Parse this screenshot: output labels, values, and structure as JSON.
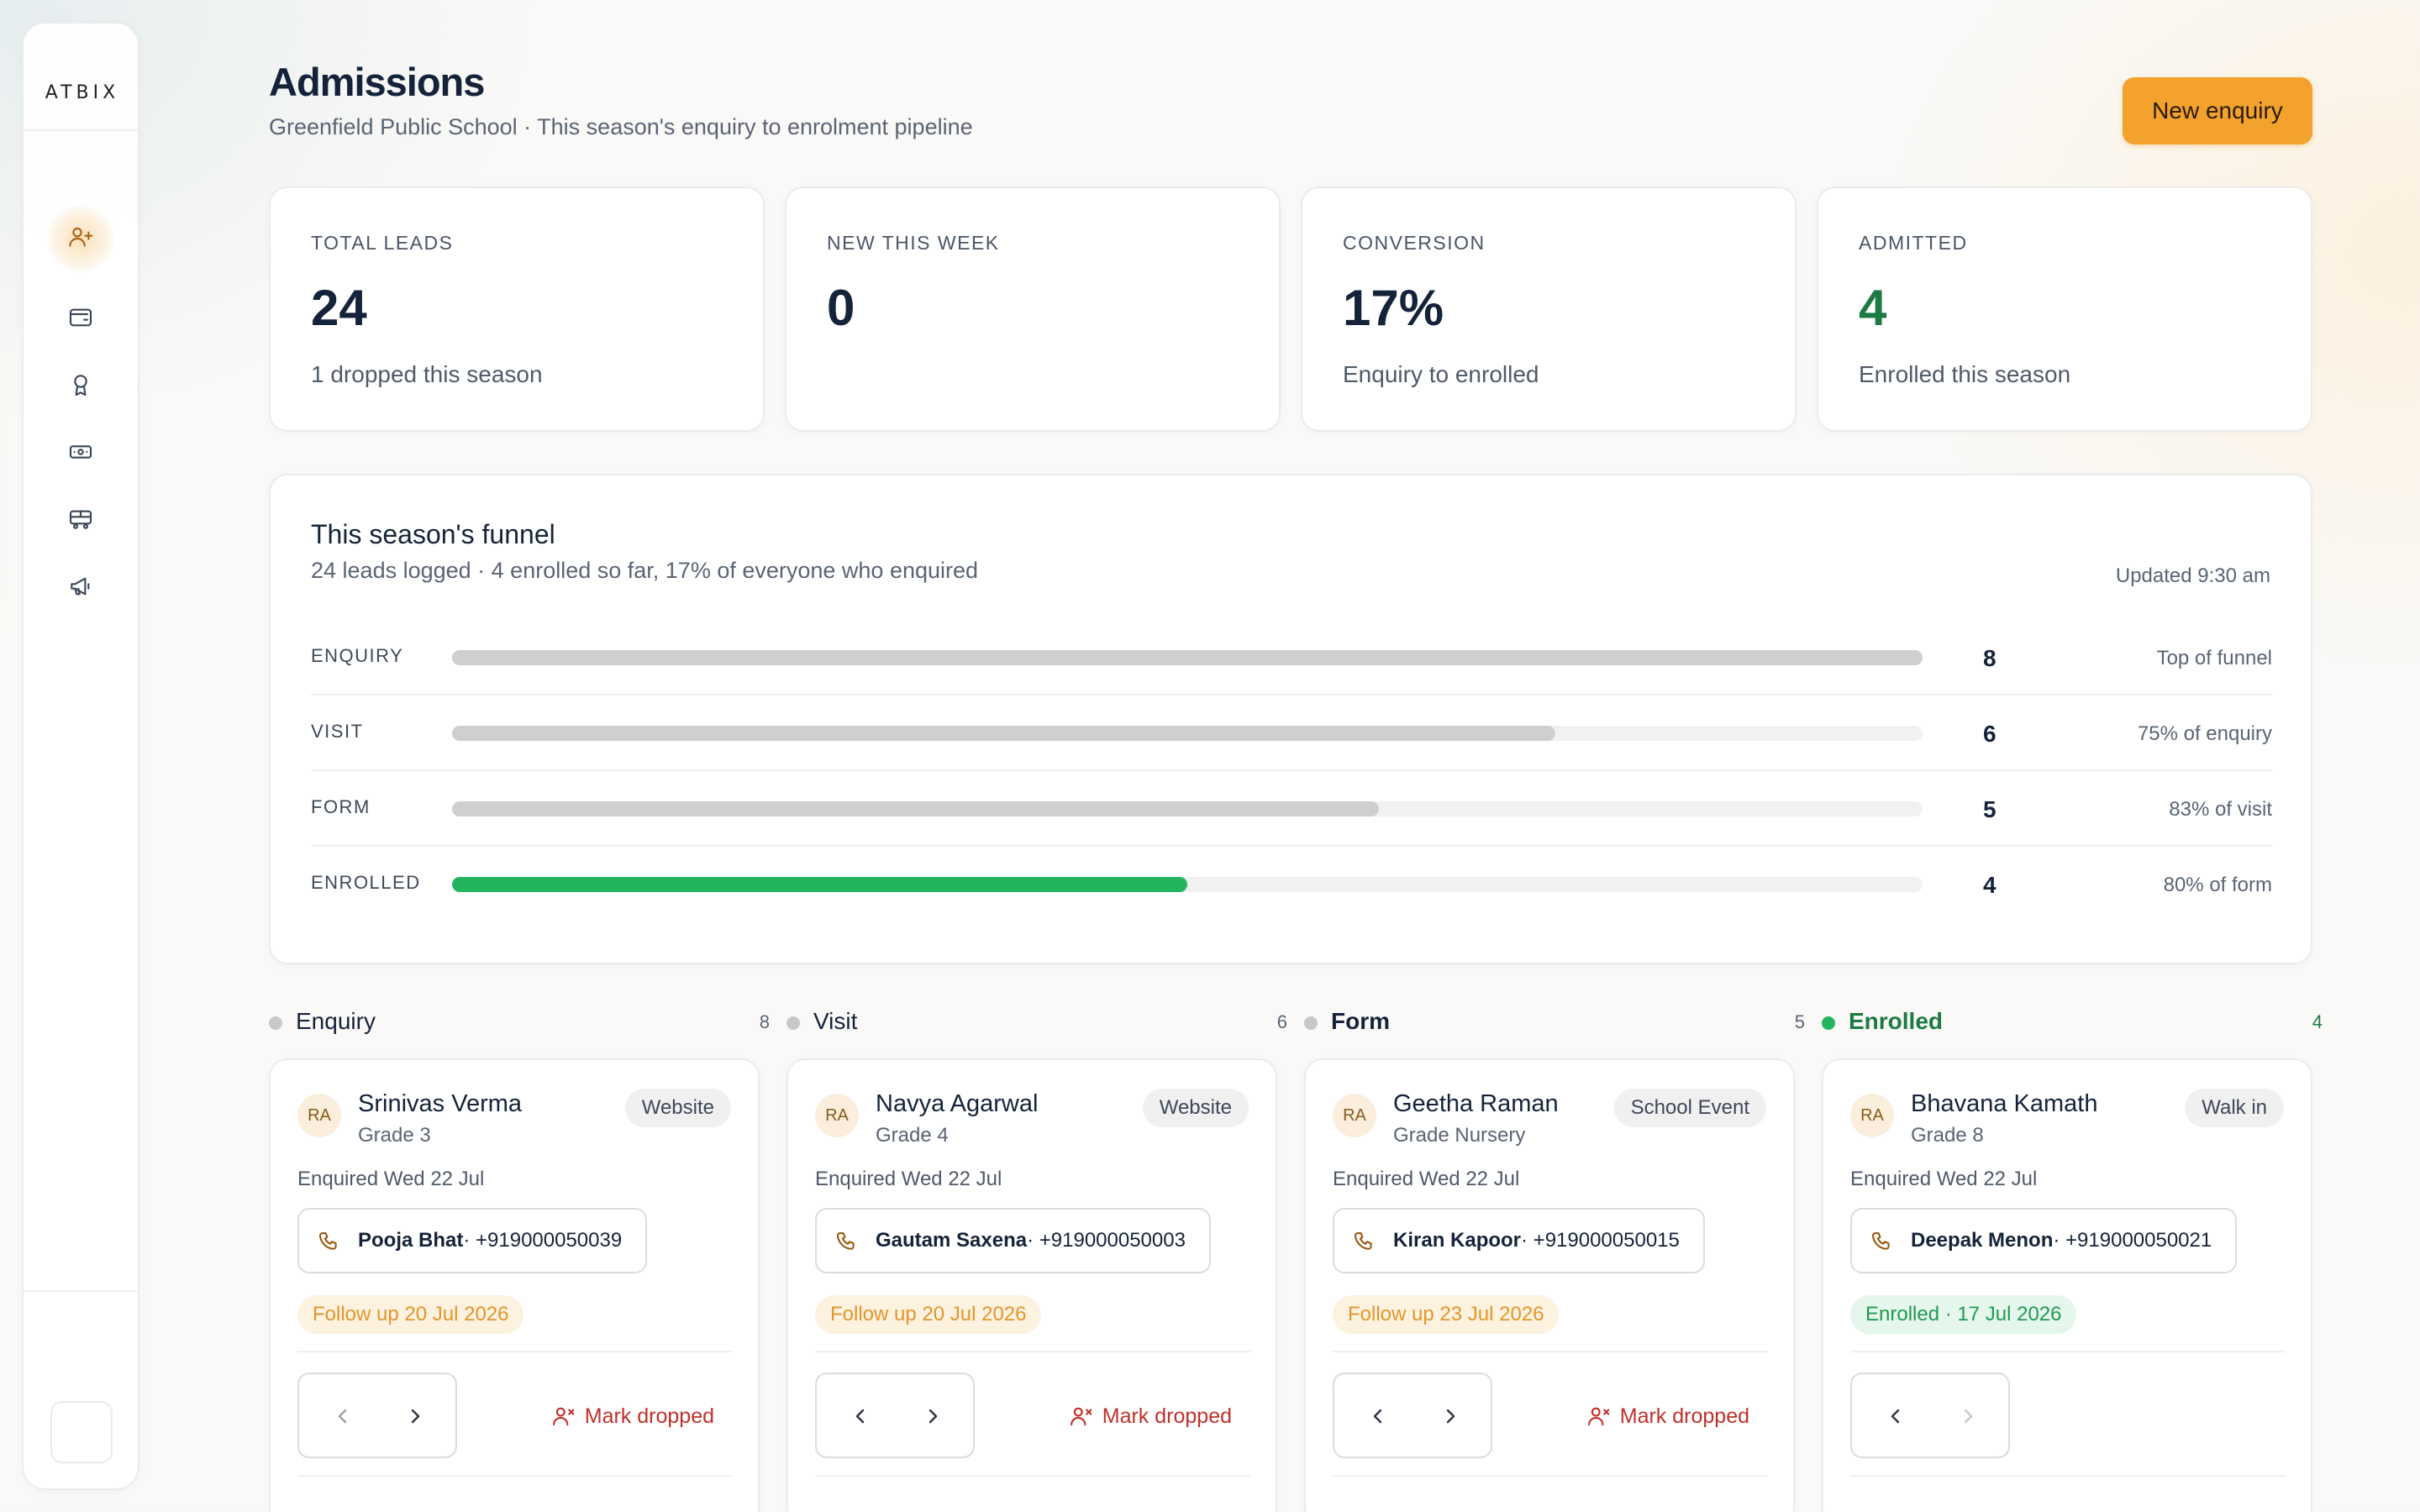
{
  "brand": {
    "logo": "ATBIX"
  },
  "header": {
    "title": "Admissions",
    "subtitle": "Greenfield Public School · This season's enquiry to enrolment pipeline",
    "new_enquiry_label": "New enquiry"
  },
  "sidebar": {
    "items": [
      {
        "icon": "user-plus-icon",
        "active": true
      },
      {
        "icon": "wallet-icon",
        "active": false
      },
      {
        "icon": "award-icon",
        "active": false
      },
      {
        "icon": "banknote-icon",
        "active": false
      },
      {
        "icon": "bus-icon",
        "active": false
      },
      {
        "icon": "megaphone-icon",
        "active": false
      }
    ]
  },
  "stats": [
    {
      "label": "TOTAL LEADS",
      "value": "24",
      "note": "1 dropped this season"
    },
    {
      "label": "NEW THIS WEEK",
      "value": "0",
      "note": ""
    },
    {
      "label": "CONVERSION",
      "value": "17%",
      "note": "Enquiry to enrolled"
    },
    {
      "label": "ADMITTED",
      "value": "4",
      "note": "Enrolled this season",
      "accent": "#1c7a43"
    }
  ],
  "funnel": {
    "title": "This season's funnel",
    "subtitle": "24 leads logged · 4 enrolled so far, 17% of everyone who enquired",
    "updated": "Updated 9:30 am",
    "stages": [
      {
        "label": "ENQUIRY",
        "count": "8",
        "note": "Top of funnel",
        "fill": 1.0,
        "color": "#cfcfcf"
      },
      {
        "label": "VISIT",
        "count": "6",
        "note": "75% of enquiry",
        "fill": 0.75,
        "color": "#cfcfcf"
      },
      {
        "label": "FORM",
        "count": "5",
        "note": "83% of visit",
        "fill": 0.63,
        "color": "#cfcfcf"
      },
      {
        "label": "ENROLLED",
        "count": "4",
        "note": "80% of form",
        "fill": 0.5,
        "color": "#22b55e"
      }
    ]
  },
  "columns": [
    {
      "title": "Enquiry",
      "count": "8",
      "card": {
        "initials": "RA",
        "name": "Srinivas Verma",
        "grade": "Grade 3",
        "source": "Website",
        "enquired": "Enquired Wed 22 Jul",
        "contact_name": "Pooja Bhat",
        "contact_phone": " · +919000050039",
        "status": "Follow up 20 Jul 2026",
        "status_type": "follow",
        "drop_label": "Mark dropped"
      }
    },
    {
      "title": "Visit",
      "count": "6",
      "card": {
        "initials": "RA",
        "name": "Navya Agarwal",
        "grade": "Grade 4",
        "source": "Website",
        "enquired": "Enquired Wed 22 Jul",
        "contact_name": "Gautam Saxena",
        "contact_phone": " · +919000050003",
        "status": "Follow up 20 Jul 2026",
        "status_type": "follow",
        "drop_label": "Mark dropped"
      }
    },
    {
      "title": "Form",
      "count": "5",
      "card": {
        "initials": "RA",
        "name": "Geetha Raman",
        "grade": "Grade Nursery",
        "source": "School Event",
        "enquired": "Enquired Wed 22 Jul",
        "contact_name": "Kiran Kapoor",
        "contact_phone": " · +919000050015",
        "status": "Follow up 23 Jul 2026",
        "status_type": "follow",
        "drop_label": "Mark dropped"
      }
    },
    {
      "title": "Enrolled",
      "count": "4",
      "card": {
        "initials": "RA",
        "name": "Bhavana Kamath",
        "grade": "Grade 8",
        "source": "Walk in",
        "enquired": "Enquired Wed 22 Jul",
        "contact_name": "Deepak Menon",
        "contact_phone": " · +919000050021",
        "status": "Enrolled · 17 Jul 2026",
        "status_type": "enrolled"
      }
    }
  ]
}
